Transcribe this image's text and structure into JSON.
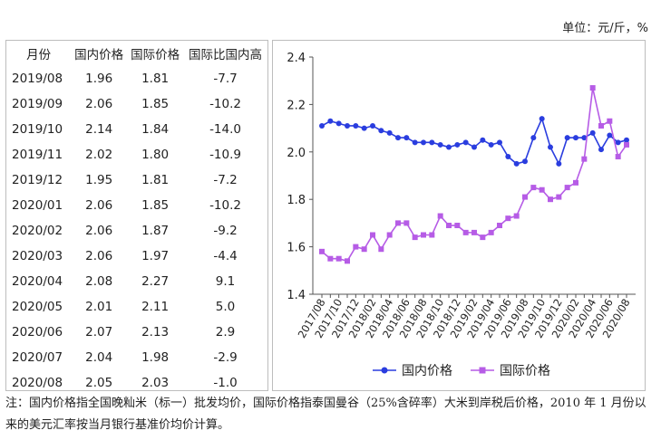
{
  "unit_label": "单位：元/斤，%",
  "table": {
    "headers": [
      "月份",
      "国内价格",
      "国际价格",
      "国际比国内高"
    ],
    "rows": [
      [
        "2019/08",
        "1.96",
        "1.81",
        "-7.7"
      ],
      [
        "2019/09",
        "2.06",
        "1.85",
        "-10.2"
      ],
      [
        "2019/10",
        "2.14",
        "1.84",
        "-14.0"
      ],
      [
        "2019/11",
        "2.02",
        "1.80",
        "-10.9"
      ],
      [
        "2019/12",
        "1.95",
        "1.81",
        "-7.2"
      ],
      [
        "2020/01",
        "2.06",
        "1.85",
        "-10.2"
      ],
      [
        "2020/02",
        "2.06",
        "1.87",
        "-9.2"
      ],
      [
        "2020/03",
        "2.06",
        "1.97",
        "-4.4"
      ],
      [
        "2020/04",
        "2.08",
        "2.27",
        "9.1"
      ],
      [
        "2020/05",
        "2.01",
        "2.11",
        "5.0"
      ],
      [
        "2020/06",
        "2.07",
        "2.13",
        "2.9"
      ],
      [
        "2020/07",
        "2.04",
        "1.98",
        "-2.9"
      ],
      [
        "2020/08",
        "2.05",
        "2.03",
        "-1.0"
      ]
    ]
  },
  "chart_data": {
    "type": "line",
    "x": [
      "2017/08",
      "2017/09",
      "2017/10",
      "2017/11",
      "2017/12",
      "2018/01",
      "2018/02",
      "2018/03",
      "2018/04",
      "2018/05",
      "2018/06",
      "2018/07",
      "2018/08",
      "2018/09",
      "2018/10",
      "2018/11",
      "2018/12",
      "2019/01",
      "2019/02",
      "2019/03",
      "2019/04",
      "2019/05",
      "2019/06",
      "2019/07",
      "2019/08",
      "2019/09",
      "2019/10",
      "2019/11",
      "2019/12",
      "2020/01",
      "2020/02",
      "2020/03",
      "2020/04",
      "2020/05",
      "2020/06",
      "2020/07",
      "2020/08"
    ],
    "x_tick_labels": [
      "2017/08",
      "2017/10",
      "2017/12",
      "2018/02",
      "2018/04",
      "2018/06",
      "2018/08",
      "2018/10",
      "2018/12",
      "2019/02",
      "2019/04",
      "2019/06",
      "2019/08",
      "2019/10",
      "2019/12",
      "2020/02",
      "2020/04",
      "2020/06",
      "2020/08"
    ],
    "series": [
      {
        "name": "国内价格",
        "color": "#2a3ddf",
        "marker": "circle",
        "values": [
          2.11,
          2.13,
          2.12,
          2.11,
          2.11,
          2.1,
          2.11,
          2.09,
          2.08,
          2.06,
          2.06,
          2.04,
          2.04,
          2.04,
          2.03,
          2.02,
          2.03,
          2.04,
          2.02,
          2.05,
          2.03,
          2.04,
          1.98,
          1.95,
          1.96,
          2.06,
          2.14,
          2.02,
          1.95,
          2.06,
          2.06,
          2.06,
          2.08,
          2.01,
          2.07,
          2.04,
          2.05
        ]
      },
      {
        "name": "国际价格",
        "color": "#b65ce6",
        "marker": "square",
        "values": [
          1.58,
          1.55,
          1.55,
          1.54,
          1.6,
          1.59,
          1.65,
          1.59,
          1.65,
          1.7,
          1.7,
          1.64,
          1.65,
          1.65,
          1.73,
          1.69,
          1.69,
          1.66,
          1.66,
          1.64,
          1.66,
          1.69,
          1.72,
          1.73,
          1.81,
          1.85,
          1.84,
          1.8,
          1.81,
          1.85,
          1.87,
          1.97,
          2.27,
          2.11,
          2.13,
          1.98,
          2.03
        ]
      }
    ],
    "yticks": [
      "2.4",
      "2.2",
      "2.0",
      "1.8",
      "1.6",
      "1.4"
    ],
    "ylim": [
      1.4,
      2.4
    ],
    "grid": false,
    "legend_position": "bottom"
  },
  "note": "注：国内价格指全国晚籼米（标一）批发均价，国际价格指泰国曼谷（25%含碎率）大米到岸税后价格，2010 年 1 月份以来的美元汇率按当月银行基准价均价计算。"
}
